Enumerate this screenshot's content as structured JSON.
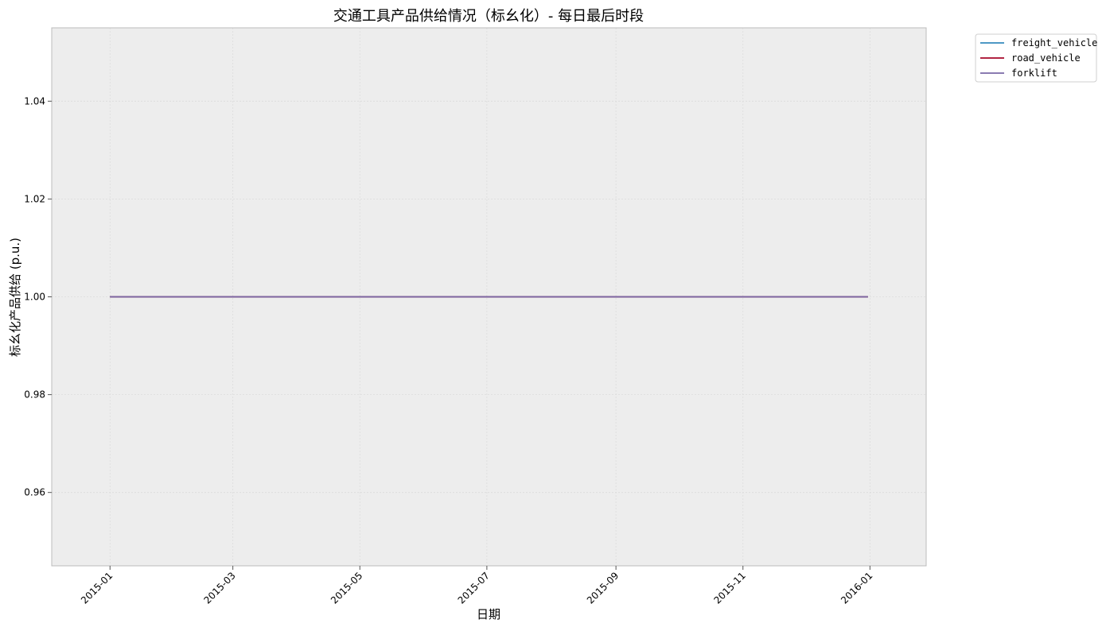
{
  "chart_data": {
    "type": "line",
    "title": "交通工具产品供给情况（标幺化）- 每日最后时段",
    "xlabel": "日期",
    "ylabel": "标幺化产品供给 (p.u.)",
    "x_axis": {
      "kind": "date",
      "range": [
        "2014-12-04",
        "2016-01-28"
      ],
      "ticks": [
        "2015-01",
        "2015-03",
        "2015-05",
        "2015-07",
        "2015-09",
        "2015-11",
        "2016-01"
      ],
      "tick_label_rotation_deg": 45
    },
    "y_axis": {
      "range": [
        0.945,
        1.055
      ],
      "ticks": [
        0.96,
        0.98,
        1.0,
        1.02,
        1.04
      ],
      "tick_labels": [
        "0.96",
        "0.98",
        "1.00",
        "1.02",
        "1.04"
      ]
    },
    "grid": true,
    "legend": {
      "placement": "outside-top-right",
      "entries": [
        "freight_vehicle",
        "road_vehicle",
        "forklift"
      ]
    },
    "series": [
      {
        "name": "freight_vehicle",
        "color": "#348ABD",
        "x": [
          "2015-01-01",
          "2015-12-31"
        ],
        "y": [
          1.0,
          1.0
        ]
      },
      {
        "name": "road_vehicle",
        "color": "#A60628",
        "x": [
          "2015-01-01",
          "2015-12-31"
        ],
        "y": [
          1.0,
          1.0
        ]
      },
      {
        "name": "forklift",
        "color": "#7A68A6",
        "x": [
          "2015-01-01",
          "2015-12-31"
        ],
        "y": [
          1.0,
          1.0
        ]
      }
    ],
    "colors": {
      "plot_background": "#EDEDED",
      "grid": "#DCDCDC",
      "frame": "#BCBCBC"
    }
  }
}
